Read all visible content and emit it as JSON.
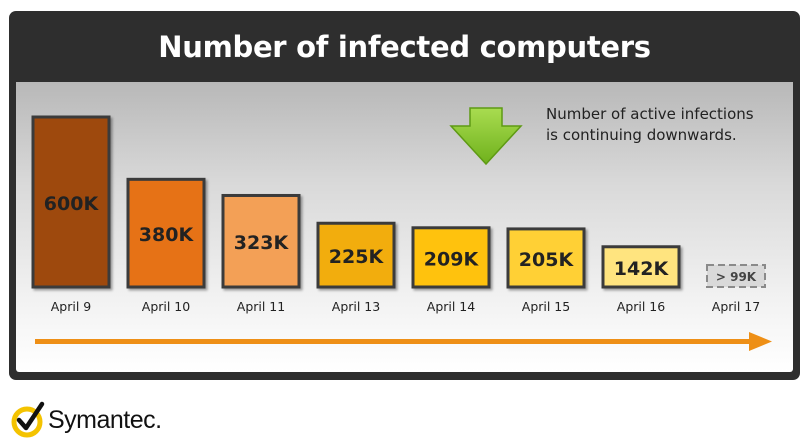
{
  "chart_data": {
    "type": "bar",
    "title": "Number of infected computers",
    "annotation": "Number of active infections is continuing downwards.",
    "annotation_lines": [
      "Number of active infections",
      "is continuing downwards."
    ],
    "categories": [
      "April 9",
      "April 10",
      "April 11",
      "April 13",
      "April 14",
      "April 15",
      "April 16",
      "April 17"
    ],
    "values": [
      600,
      380,
      323,
      225,
      209,
      205,
      142,
      99
    ],
    "value_labels": [
      "600K",
      "380K",
      "323K",
      "225K",
      "209K",
      "205K",
      "142K",
      "> 99K"
    ],
    "unit": "K",
    "colors": [
      "#9e4a0c",
      "#e67219",
      "#f3a057",
      "#f2ad10",
      "#ffc20c",
      "#ffd035",
      "#ffe47f",
      "#d9d9d9"
    ],
    "dashed_last": true,
    "grid": false,
    "legend": "none",
    "accent": "#ee8f16"
  },
  "header": {
    "background": "#2e2e2e",
    "title_color": "#ffffff"
  },
  "brand": {
    "name": "Symantec.",
    "icon": "checkmark-logo-icon",
    "color": "#f4c300"
  }
}
